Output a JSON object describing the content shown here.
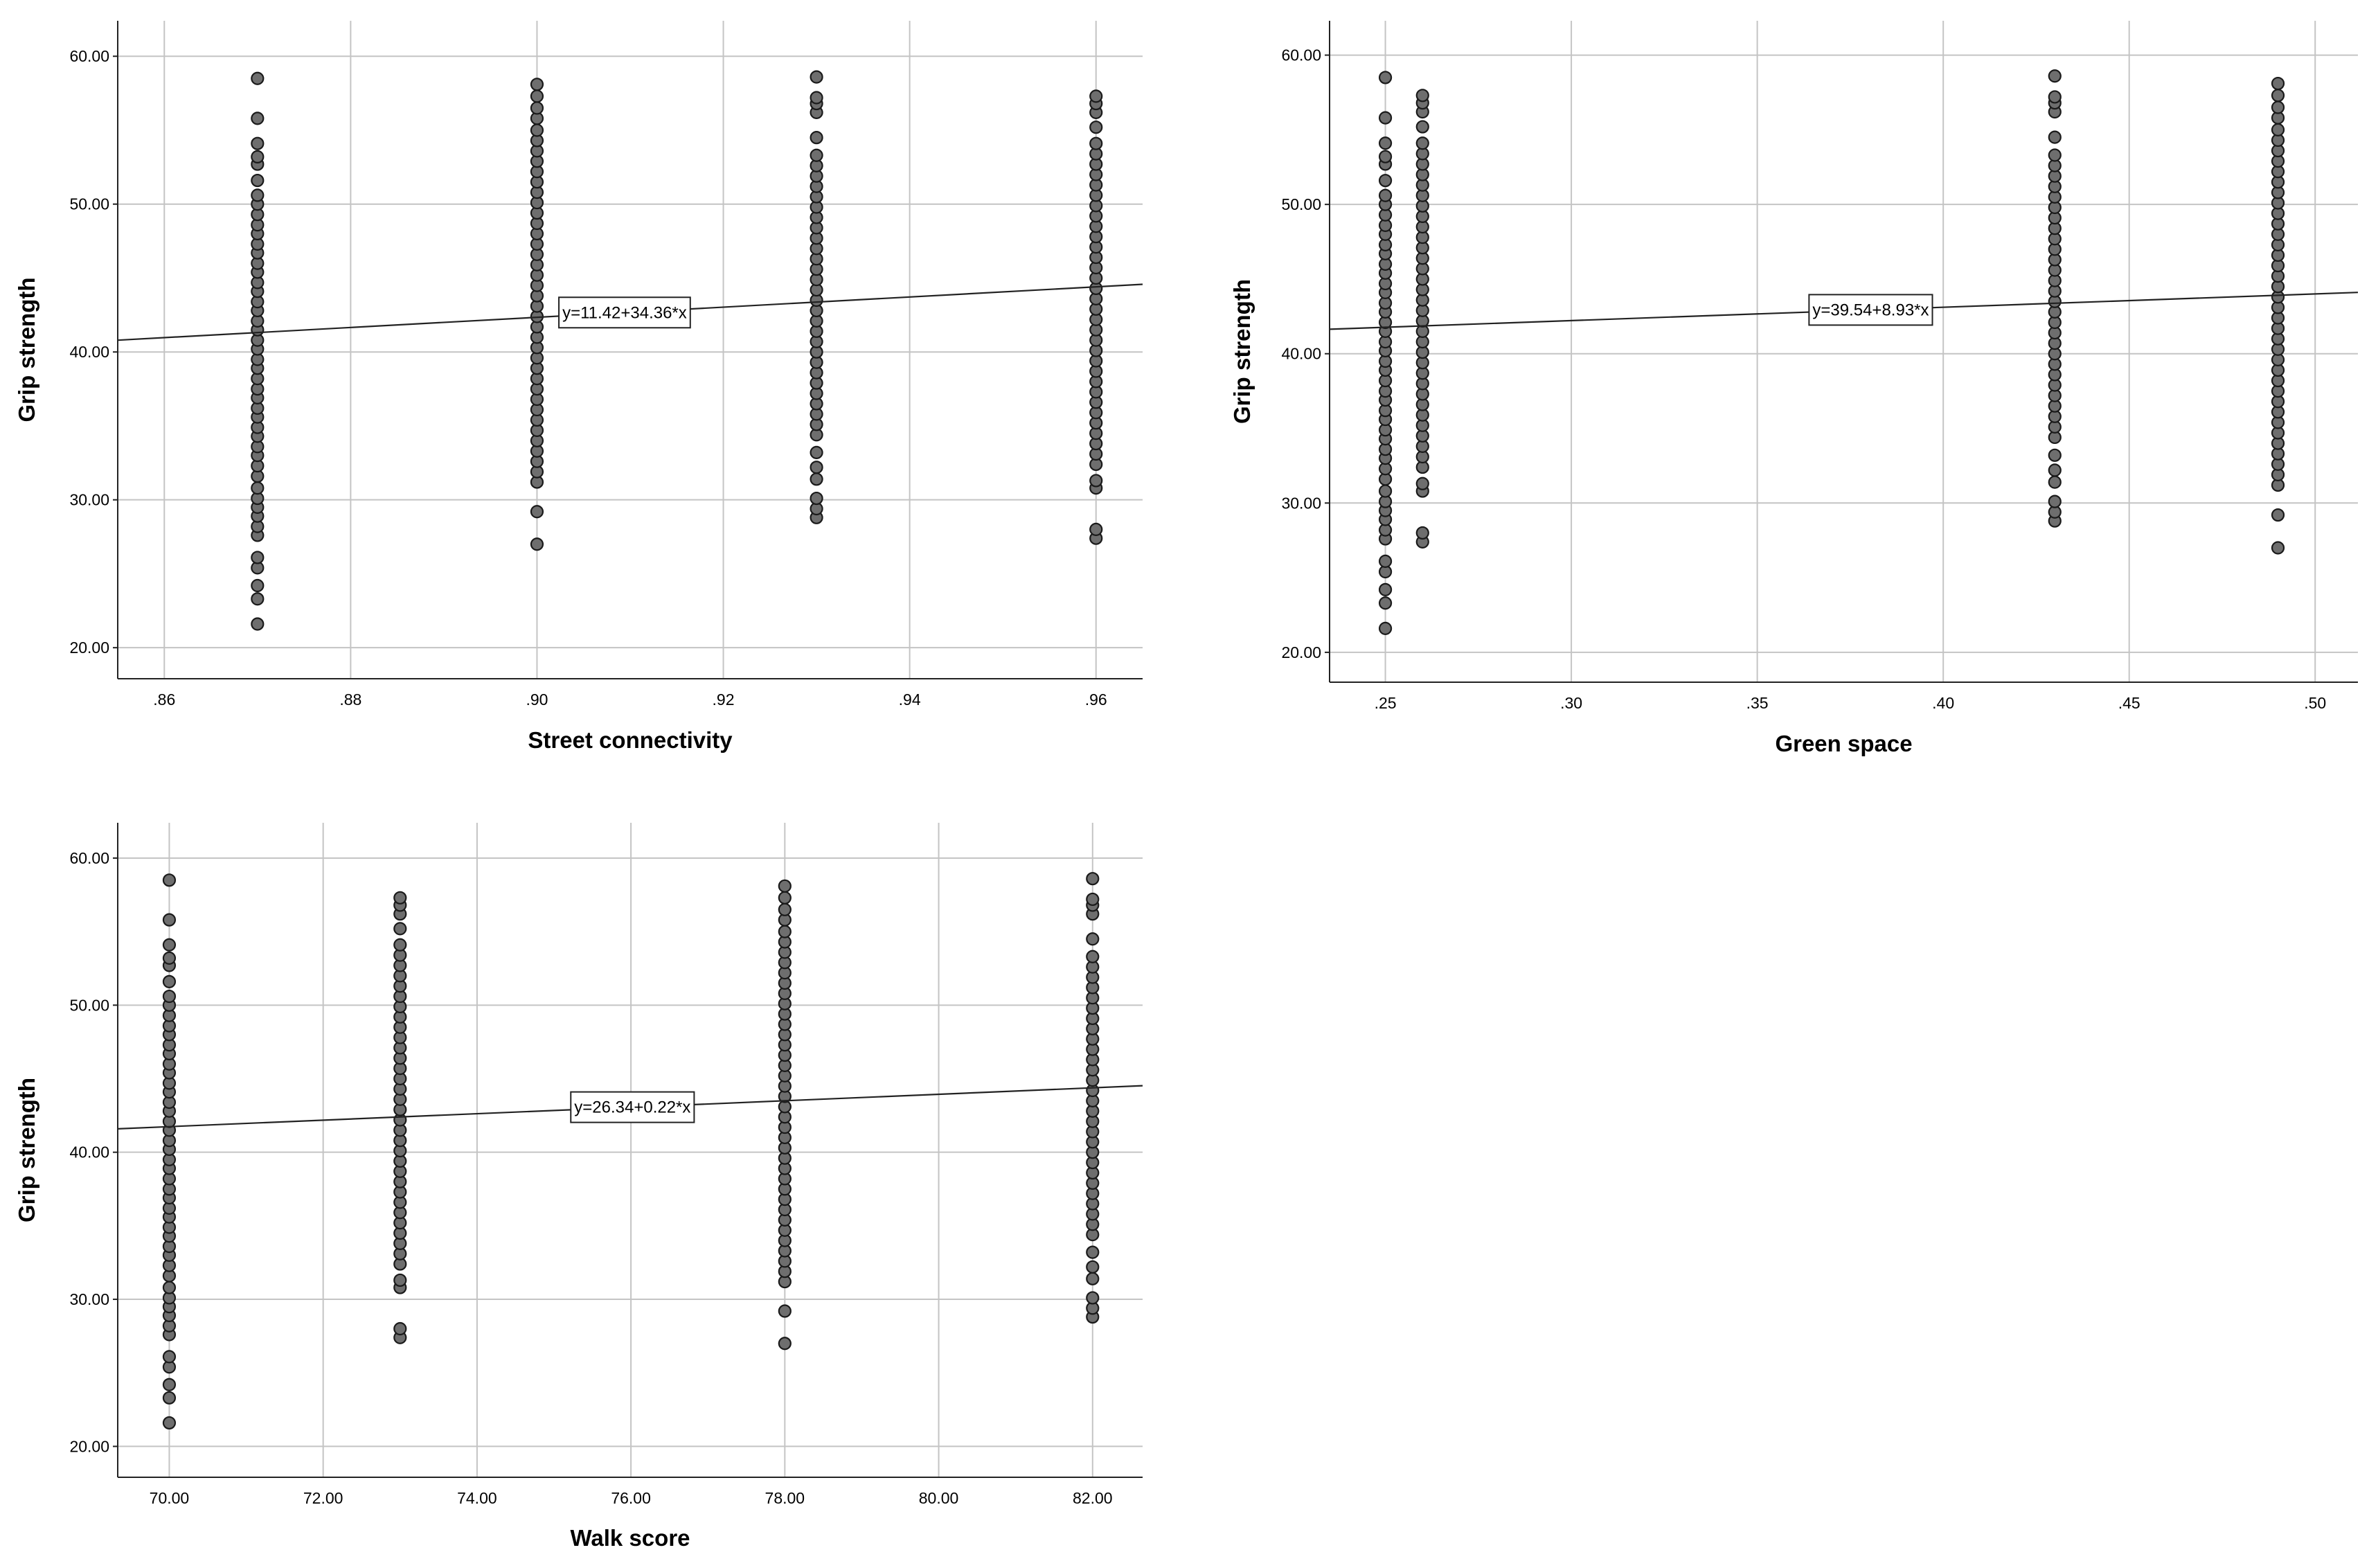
{
  "chart_data": [
    {
      "type": "scatter",
      "xlabel": "Street connectivity",
      "ylabel": "Grip strength",
      "xlim": [
        0.855,
        0.965
      ],
      "ylim": [
        17.9,
        62.4
      ],
      "xticks": [
        0.86,
        0.88,
        0.9,
        0.92,
        0.94,
        0.96
      ],
      "xtick_labels": [
        ".86",
        ".88",
        ".90",
        ".92",
        ".94",
        ".96"
      ],
      "yticks": [
        20,
        30,
        40,
        50,
        60
      ],
      "ytick_labels": [
        "20.00",
        "30.00",
        "40.00",
        "50.00",
        "60.00"
      ],
      "grid": true,
      "fit_line": {
        "intercept": 11.42,
        "slope": 34.36,
        "label": "y=11.42+34.36*x",
        "label_x": 0.9094
      },
      "series": [
        {
          "x": 0.87,
          "y": [
            21.6,
            23.3,
            24.2,
            25.4,
            26.1,
            27.6,
            28.2,
            28.9,
            29.5,
            30.1,
            30.8,
            31.6,
            32.3,
            33.0,
            33.6,
            34.3,
            34.9,
            35.6,
            36.2,
            36.9,
            37.5,
            38.2,
            38.9,
            39.5,
            40.2,
            40.8,
            41.5,
            42.1,
            42.8,
            43.4,
            44.1,
            44.7,
            45.4,
            46.0,
            46.7,
            47.3,
            48.0,
            48.6,
            49.3,
            50.0,
            50.6,
            51.6,
            52.7,
            53.2,
            54.1,
            55.8,
            58.5
          ]
        },
        {
          "x": 0.9,
          "y": [
            27.0,
            29.2,
            31.2,
            31.9,
            32.6,
            33.3,
            34.0,
            34.7,
            35.4,
            36.1,
            36.8,
            37.5,
            38.2,
            38.9,
            39.6,
            40.3,
            41.0,
            41.7,
            42.4,
            43.1,
            43.8,
            44.5,
            45.2,
            45.9,
            46.6,
            47.3,
            48.0,
            48.7,
            49.4,
            50.1,
            50.8,
            51.5,
            52.2,
            52.9,
            53.6,
            54.3,
            55.0,
            55.8,
            56.5,
            57.3,
            58.1
          ]
        },
        {
          "x": 0.93,
          "y": [
            28.8,
            29.4,
            30.1,
            31.4,
            32.2,
            33.2,
            34.4,
            35.1,
            35.8,
            36.5,
            37.2,
            37.9,
            38.6,
            39.3,
            40.0,
            40.7,
            41.4,
            42.1,
            42.8,
            43.5,
            44.2,
            44.9,
            45.6,
            46.3,
            47.0,
            47.7,
            48.4,
            49.1,
            49.8,
            50.5,
            51.2,
            51.9,
            52.6,
            53.3,
            54.5,
            56.2,
            56.8,
            57.2,
            58.6
          ]
        },
        {
          "x": 0.96,
          "y": [
            27.4,
            28.0,
            30.8,
            31.3,
            32.4,
            33.1,
            33.8,
            34.5,
            35.2,
            35.9,
            36.6,
            37.3,
            38.0,
            38.7,
            39.4,
            40.1,
            40.8,
            41.5,
            42.2,
            42.9,
            43.6,
            44.3,
            45.0,
            45.7,
            46.4,
            47.1,
            47.8,
            48.5,
            49.2,
            49.9,
            50.6,
            51.3,
            52.0,
            52.7,
            53.4,
            54.1,
            55.2,
            56.2,
            56.8,
            57.3
          ]
        }
      ]
    },
    {
      "type": "scatter",
      "xlabel": "Green space",
      "ylabel": "Grip strength",
      "xlim": [
        0.235,
        0.5115
      ],
      "ylim": [
        18.0,
        62.3
      ],
      "xticks": [
        0.25,
        0.3,
        0.35,
        0.4,
        0.45,
        0.5
      ],
      "xtick_labels": [
        ".25",
        ".30",
        ".35",
        ".40",
        ".45",
        ".50"
      ],
      "yticks": [
        20,
        30,
        40,
        50,
        60
      ],
      "ytick_labels": [
        "20.00",
        "30.00",
        "40.00",
        "50.00",
        "60.00"
      ],
      "grid": true,
      "fit_line": {
        "intercept": 39.54,
        "slope": 8.93,
        "label": "y=39.54+8.93*x",
        "label_x": 0.3805
      },
      "series": [
        {
          "x": 0.25,
          "y": [
            21.6,
            23.3,
            24.2,
            25.4,
            26.1,
            27.6,
            28.2,
            28.9,
            29.5,
            30.1,
            30.8,
            31.6,
            32.3,
            33.0,
            33.6,
            34.3,
            34.9,
            35.6,
            36.2,
            36.9,
            37.5,
            38.2,
            38.9,
            39.5,
            40.2,
            40.8,
            41.5,
            42.1,
            42.8,
            43.4,
            44.1,
            44.7,
            45.4,
            46.0,
            46.7,
            47.3,
            48.0,
            48.6,
            49.3,
            50.0,
            50.6,
            51.6,
            52.7,
            53.2,
            54.1,
            55.8,
            58.5
          ]
        },
        {
          "x": 0.26,
          "y": [
            27.4,
            28.0,
            30.8,
            31.3,
            32.4,
            33.1,
            33.8,
            34.5,
            35.2,
            35.9,
            36.6,
            37.3,
            38.0,
            38.7,
            39.4,
            40.1,
            40.8,
            41.5,
            42.2,
            42.9,
            43.6,
            44.3,
            45.0,
            45.7,
            46.4,
            47.1,
            47.8,
            48.5,
            49.2,
            49.9,
            50.6,
            51.3,
            52.0,
            52.7,
            53.4,
            54.1,
            55.2,
            56.2,
            56.8,
            57.3
          ]
        },
        {
          "x": 0.43,
          "y": [
            28.8,
            29.4,
            30.1,
            31.4,
            32.2,
            33.2,
            34.4,
            35.1,
            35.8,
            36.5,
            37.2,
            37.9,
            38.6,
            39.3,
            40.0,
            40.7,
            41.4,
            42.1,
            42.8,
            43.5,
            44.2,
            44.9,
            45.6,
            46.3,
            47.0,
            47.7,
            48.4,
            49.1,
            49.8,
            50.5,
            51.2,
            51.9,
            52.6,
            53.3,
            54.5,
            56.2,
            56.8,
            57.2,
            58.6
          ]
        },
        {
          "x": 0.49,
          "y": [
            27.0,
            29.2,
            31.2,
            31.9,
            32.6,
            33.3,
            34.0,
            34.7,
            35.4,
            36.1,
            36.8,
            37.5,
            38.2,
            38.9,
            39.6,
            40.3,
            41.0,
            41.7,
            42.4,
            43.1,
            43.8,
            44.5,
            45.2,
            45.9,
            46.6,
            47.3,
            48.0,
            48.7,
            49.4,
            50.1,
            50.8,
            51.5,
            52.2,
            52.9,
            53.6,
            54.3,
            55.0,
            55.8,
            56.5,
            57.3,
            58.1
          ]
        }
      ]
    },
    {
      "type": "scatter",
      "xlabel": "Walk score",
      "ylabel": "Grip strength",
      "xlim": [
        69.33,
        82.65
      ],
      "ylim": [
        17.9,
        62.4
      ],
      "xticks": [
        70,
        72,
        74,
        76,
        78,
        80,
        82
      ],
      "xtick_labels": [
        "70.00",
        "72.00",
        "74.00",
        "76.00",
        "78.00",
        "80.00",
        "82.00"
      ],
      "yticks": [
        20,
        30,
        40,
        50,
        60
      ],
      "ytick_labels": [
        "20.00",
        "30.00",
        "40.00",
        "50.00",
        "60.00"
      ],
      "grid": true,
      "fit_line": {
        "intercept": 26.34,
        "slope": 0.22,
        "label": "y=26.34+0.22*x",
        "label_x": 76.02
      },
      "series": [
        {
          "x": 70,
          "y": [
            21.6,
            23.3,
            24.2,
            25.4,
            26.1,
            27.6,
            28.2,
            28.9,
            29.5,
            30.1,
            30.8,
            31.6,
            32.3,
            33.0,
            33.6,
            34.3,
            34.9,
            35.6,
            36.2,
            36.9,
            37.5,
            38.2,
            38.9,
            39.5,
            40.2,
            40.8,
            41.5,
            42.1,
            42.8,
            43.4,
            44.1,
            44.7,
            45.4,
            46.0,
            46.7,
            47.3,
            48.0,
            48.6,
            49.3,
            50.0,
            50.6,
            51.6,
            52.7,
            53.2,
            54.1,
            55.8,
            58.5
          ]
        },
        {
          "x": 73,
          "y": [
            27.4,
            28.0,
            30.8,
            31.3,
            32.4,
            33.1,
            33.8,
            34.5,
            35.2,
            35.9,
            36.6,
            37.3,
            38.0,
            38.7,
            39.4,
            40.1,
            40.8,
            41.5,
            42.2,
            42.9,
            43.6,
            44.3,
            45.0,
            45.7,
            46.4,
            47.1,
            47.8,
            48.5,
            49.2,
            49.9,
            50.6,
            51.3,
            52.0,
            52.7,
            53.4,
            54.1,
            55.2,
            56.2,
            56.8,
            57.3
          ]
        },
        {
          "x": 78,
          "y": [
            27.0,
            29.2,
            31.2,
            31.9,
            32.6,
            33.3,
            34.0,
            34.7,
            35.4,
            36.1,
            36.8,
            37.5,
            38.2,
            38.9,
            39.6,
            40.3,
            41.0,
            41.7,
            42.4,
            43.1,
            43.8,
            44.5,
            45.2,
            45.9,
            46.6,
            47.3,
            48.0,
            48.7,
            49.4,
            50.1,
            50.8,
            51.5,
            52.2,
            52.9,
            53.6,
            54.3,
            55.0,
            55.8,
            56.5,
            57.3,
            58.1
          ]
        },
        {
          "x": 82,
          "y": [
            28.8,
            29.4,
            30.1,
            31.4,
            32.2,
            33.2,
            34.4,
            35.1,
            35.8,
            36.5,
            37.2,
            37.9,
            38.6,
            39.3,
            40.0,
            40.7,
            41.4,
            42.1,
            42.8,
            43.5,
            44.2,
            44.9,
            45.6,
            46.3,
            47.0,
            47.7,
            48.4,
            49.1,
            49.8,
            50.5,
            51.2,
            51.9,
            52.6,
            53.3,
            54.5,
            56.2,
            56.8,
            57.2,
            58.6
          ]
        }
      ]
    }
  ]
}
